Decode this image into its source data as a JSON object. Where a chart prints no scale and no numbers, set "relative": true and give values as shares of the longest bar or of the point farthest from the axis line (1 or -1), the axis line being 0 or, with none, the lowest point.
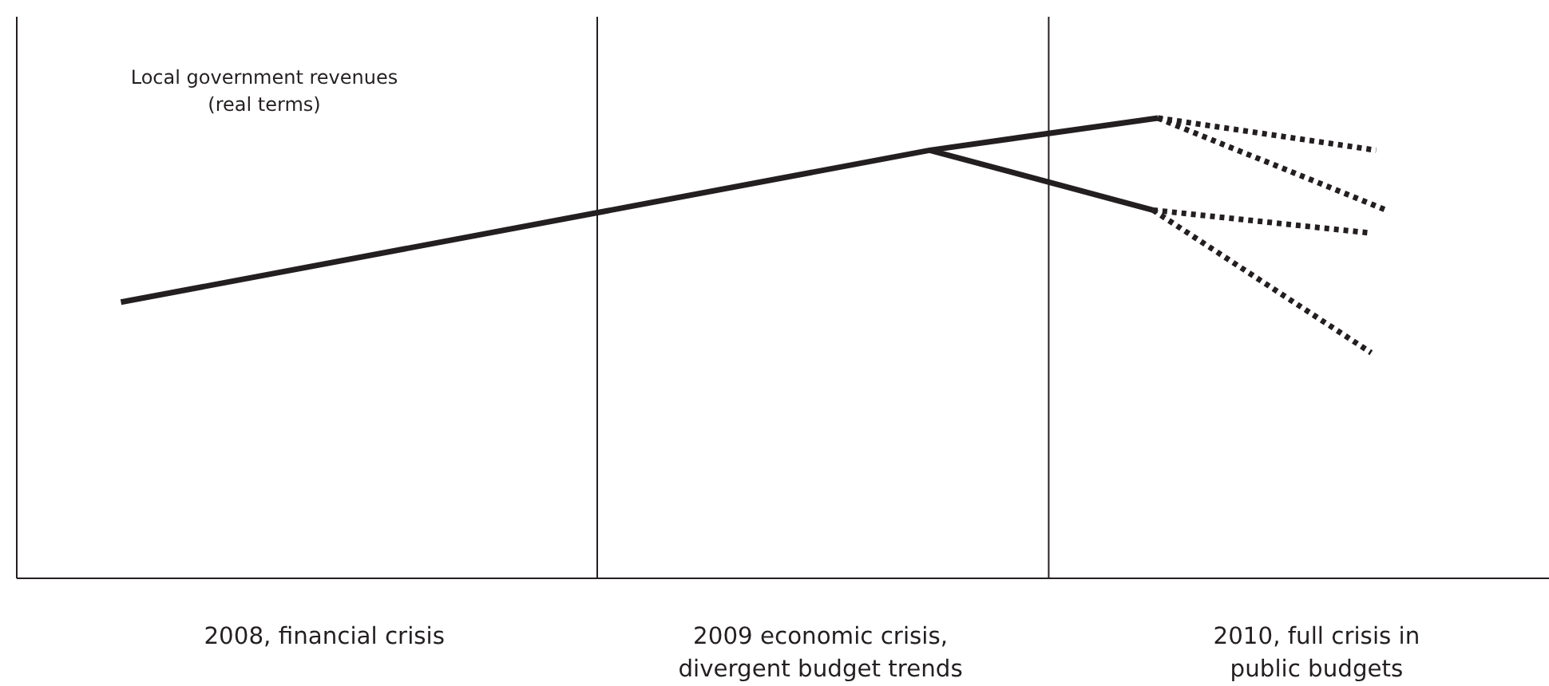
{
  "chart_data": {
    "type": "line",
    "relative": true,
    "xlim": [
      2007.38,
      2010.47
    ],
    "xticks": [
      {
        "value": 2008,
        "label": "2008, financial crisis"
      },
      {
        "value": 2009,
        "label": "2009 economic crisis,\ndivergent budget trends"
      },
      {
        "value": 2010,
        "label": "2010, full crisis in\npublic budgets"
      }
    ],
    "tick_labels": "x",
    "grid": false,
    "annotations": [
      "Local government revenues\n(real terms)"
    ],
    "ref_lines": [
      {
        "axis": "x",
        "value": 2008.55,
        "color": "#231f20"
      },
      {
        "axis": "x",
        "value": 2009.46,
        "color": "#231f20"
      }
    ],
    "series": [
      {
        "color": "#231f20",
        "line_style": "solid",
        "x": [
          2007.59,
          2009.22,
          2009.68
        ],
        "values": [
          0.6,
          0.93,
          1.0
        ]
      },
      {
        "color": "#231f20",
        "line_style": "solid",
        "x": [
          2009.22,
          2009.67
        ],
        "values": [
          0.93,
          0.8
        ]
      },
      {
        "color": "#231f20",
        "line_style": "dotted",
        "x": [
          2009.68,
          2010.12
        ],
        "values": [
          1.0,
          0.93
        ]
      },
      {
        "color": "#231f20",
        "line_style": "dotted",
        "x": [
          2009.68,
          2010.14
        ],
        "values": [
          1.0,
          0.8
        ]
      },
      {
        "color": "#231f20",
        "line_style": "dotted",
        "x": [
          2009.67,
          2010.11
        ],
        "values": [
          0.8,
          0.75
        ]
      },
      {
        "color": "#231f20",
        "line_style": "dotted",
        "x": [
          2009.67,
          2010.11
        ],
        "values": [
          0.8,
          0.49
        ]
      }
    ]
  }
}
